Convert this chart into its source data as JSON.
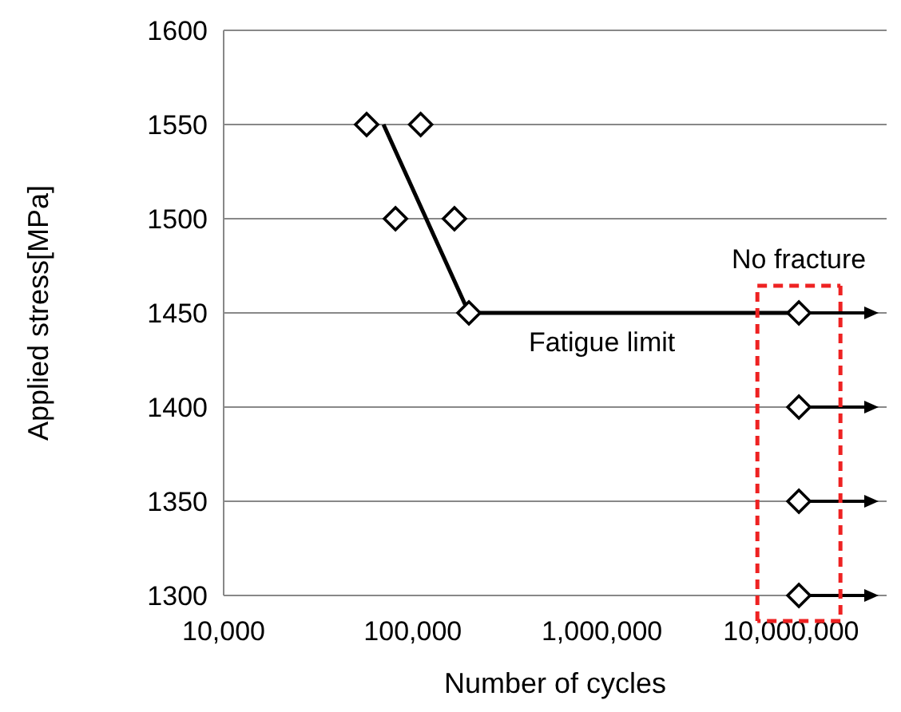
{
  "chart_data": {
    "type": "scatter",
    "xlabel": "Number of cycles",
    "ylabel": "Applied stress[MPa]",
    "log": "x",
    "grid": "y",
    "xlim": [
      10000,
      32000000
    ],
    "xticks": [
      {
        "value": 10000,
        "label": "10,000"
      },
      {
        "value": 100000,
        "label": "100,000"
      },
      {
        "value": 1000000,
        "label": "1,000,000"
      },
      {
        "value": 10000000,
        "label": "10,000,000"
      }
    ],
    "ylim": [
      1300,
      1600
    ],
    "yticks": [
      1300,
      1350,
      1400,
      1450,
      1500,
      1550,
      1600
    ],
    "series": [
      {
        "marker": "diamond",
        "color": "#000000",
        "x": [
          57000,
          110000,
          81000,
          166000,
          198000,
          11000000,
          11000000,
          11000000,
          11000000
        ],
        "values": [
          1550,
          1550,
          1500,
          1500,
          1450,
          1450,
          1400,
          1350,
          1300
        ]
      },
      {
        "type": "line",
        "marker": "none",
        "color": "#000000",
        "x": [
          70000,
          198000,
          11000000
        ],
        "values": [
          1550,
          1450,
          1450
        ]
      }
    ],
    "annotations": [
      {
        "text": "Fatigue limit",
        "x": 1000000,
        "y": 1450
      },
      {
        "text": "No fracture",
        "x": 11000000,
        "y": 1450
      }
    ]
  }
}
